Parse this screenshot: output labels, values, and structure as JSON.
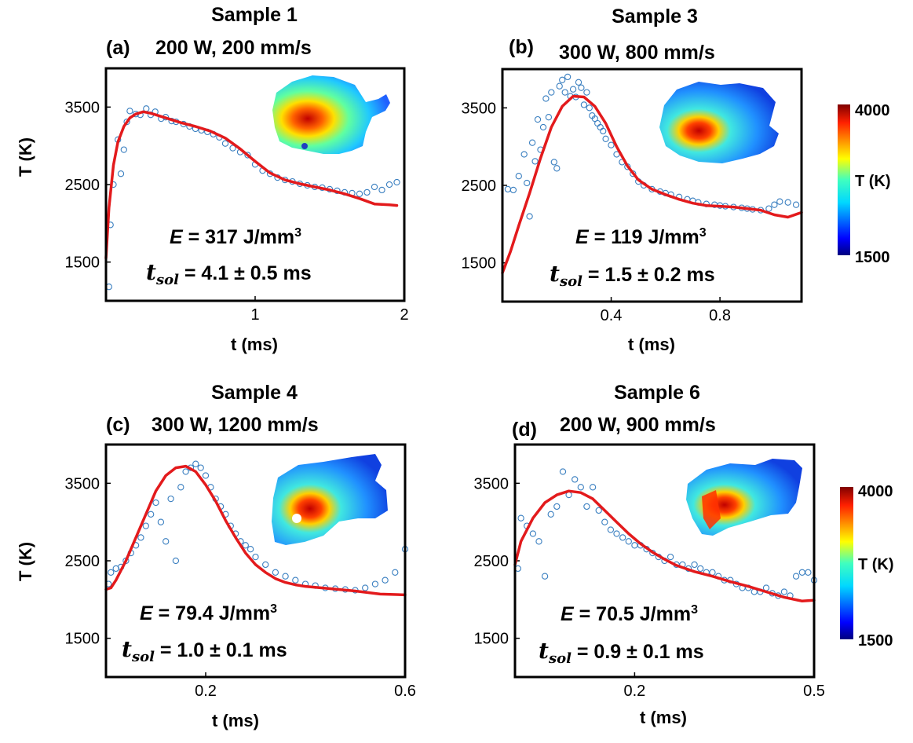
{
  "colors": {
    "fit_line": "#e31a1c",
    "points": "#3a7fc0",
    "colormap": [
      "#00007f",
      "#0000ff",
      "#0080ff",
      "#00d8ff",
      "#40ffbf",
      "#80ff40",
      "#ffff00",
      "#ff8000",
      "#ff0000",
      "#7f0000"
    ]
  },
  "colorbars": [
    {
      "label": "T (K)",
      "max_label": "4000",
      "min_label": "1500"
    },
    {
      "label": "T (K)",
      "max_label": "4000",
      "min_label": "1500"
    }
  ],
  "chart_data": [
    {
      "type": "scatter",
      "panel": "(a)",
      "title": "Sample 1",
      "subtitle": "200 W, 200 mm/s",
      "xlabel": "t (ms)",
      "ylabel": "T (K)",
      "xlim": [
        0,
        2
      ],
      "ylim": [
        1000,
        4000
      ],
      "xticks": [
        1,
        2
      ],
      "yticks": [
        1500,
        2500,
        3500
      ],
      "annotation_energy": "E = 317 J/mm³",
      "annotation_tsol": "tsol = 4.1 ± 0.5 ms",
      "series": [
        {
          "kind": "points",
          "x": [
            0.02,
            0.03,
            0.05,
            0.08,
            0.1,
            0.12,
            0.14,
            0.16,
            0.2,
            0.23,
            0.27,
            0.3,
            0.33,
            0.37,
            0.4,
            0.44,
            0.47,
            0.52,
            0.56,
            0.6,
            0.64,
            0.68,
            0.72,
            0.76,
            0.8,
            0.85,
            0.9,
            0.95,
            1.0,
            1.05,
            1.1,
            1.15,
            1.2,
            1.25,
            1.3,
            1.35,
            1.4,
            1.45,
            1.5,
            1.55,
            1.6,
            1.65,
            1.7,
            1.75,
            1.8,
            1.85,
            1.9,
            1.95
          ],
          "y": [
            1180,
            1980,
            2500,
            3080,
            2640,
            2950,
            3310,
            3450,
            3410,
            3400,
            3480,
            3400,
            3440,
            3350,
            3370,
            3320,
            3310,
            3280,
            3250,
            3220,
            3200,
            3180,
            3150,
            3110,
            3030,
            2970,
            2920,
            2880,
            2760,
            2680,
            2640,
            2590,
            2560,
            2540,
            2510,
            2490,
            2470,
            2460,
            2440,
            2420,
            2400,
            2390,
            2380,
            2400,
            2470,
            2430,
            2500,
            2530
          ]
        },
        {
          "kind": "fit",
          "x": [
            0,
            0.02,
            0.05,
            0.08,
            0.12,
            0.16,
            0.2,
            0.25,
            0.3,
            0.4,
            0.5,
            0.6,
            0.7,
            0.8,
            0.9,
            1.0,
            1.1,
            1.2,
            1.3,
            1.4,
            1.5,
            1.6,
            1.7,
            1.8,
            1.9,
            1.95
          ],
          "y": [
            1550,
            2200,
            2750,
            3050,
            3250,
            3360,
            3410,
            3440,
            3420,
            3360,
            3300,
            3250,
            3190,
            3100,
            2960,
            2800,
            2650,
            2560,
            2510,
            2470,
            2430,
            2380,
            2320,
            2250,
            2240,
            2230
          ]
        }
      ]
    },
    {
      "type": "scatter",
      "panel": "(b)",
      "title": "Sample 3",
      "subtitle": "300 W, 800 mm/s",
      "xlabel": "t (ms)",
      "ylabel": "",
      "xlim": [
        0,
        1.1
      ],
      "ylim": [
        1000,
        4000
      ],
      "xticks": [
        0.4,
        0.8
      ],
      "yticks": [
        1500,
        2500,
        3500
      ],
      "annotation_energy": "E = 119 J/mm³",
      "annotation_tsol": "tsol = 1.5 ± 0.2 ms",
      "series": [
        {
          "kind": "points",
          "x": [
            0.02,
            0.04,
            0.06,
            0.08,
            0.09,
            0.1,
            0.11,
            0.12,
            0.13,
            0.14,
            0.15,
            0.16,
            0.17,
            0.18,
            0.19,
            0.2,
            0.21,
            0.22,
            0.23,
            0.24,
            0.25,
            0.26,
            0.27,
            0.28,
            0.29,
            0.3,
            0.31,
            0.32,
            0.33,
            0.34,
            0.35,
            0.36,
            0.37,
            0.38,
            0.4,
            0.42,
            0.44,
            0.46,
            0.48,
            0.5,
            0.52,
            0.55,
            0.58,
            0.6,
            0.62,
            0.65,
            0.68,
            0.7,
            0.72,
            0.75,
            0.78,
            0.8,
            0.82,
            0.85,
            0.88,
            0.9,
            0.92,
            0.95,
            0.98,
            1.0,
            1.02,
            1.05,
            1.08
          ],
          "y": [
            2450,
            2440,
            2620,
            2900,
            2530,
            2100,
            3050,
            2810,
            3350,
            2960,
            3250,
            3620,
            3380,
            3700,
            2800,
            2720,
            3780,
            3860,
            3700,
            3900,
            3650,
            3740,
            3640,
            3830,
            3760,
            3540,
            3700,
            3500,
            3400,
            3360,
            3300,
            3250,
            3200,
            3100,
            3020,
            2900,
            2800,
            2740,
            2650,
            2550,
            2500,
            2450,
            2420,
            2400,
            2380,
            2350,
            2320,
            2300,
            2280,
            2260,
            2250,
            2240,
            2230,
            2220,
            2210,
            2200,
            2190,
            2180,
            2200,
            2250,
            2290,
            2280,
            2250
          ]
        },
        {
          "kind": "fit",
          "x": [
            0,
            0.03,
            0.06,
            0.1,
            0.14,
            0.18,
            0.22,
            0.26,
            0.3,
            0.34,
            0.38,
            0.42,
            0.46,
            0.5,
            0.55,
            0.6,
            0.65,
            0.7,
            0.75,
            0.8,
            0.85,
            0.9,
            0.95,
            1.0,
            1.05,
            1.1
          ],
          "y": [
            1370,
            1650,
            1980,
            2400,
            2850,
            3250,
            3520,
            3650,
            3640,
            3520,
            3300,
            3000,
            2750,
            2570,
            2450,
            2380,
            2320,
            2270,
            2240,
            2230,
            2220,
            2200,
            2180,
            2120,
            2090,
            2150
          ]
        }
      ]
    },
    {
      "type": "scatter",
      "panel": "(c)",
      "title": "Sample 4",
      "subtitle": "300 W, 1200 mm/s",
      "xlabel": "t (ms)",
      "ylabel": "T (K)",
      "xlim": [
        0,
        0.6
      ],
      "ylim": [
        1000,
        4000
      ],
      "xticks": [
        0.2,
        0.6
      ],
      "yticks": [
        1500,
        2500,
        3500
      ],
      "annotation_energy": "E = 79.4 J/mm³",
      "annotation_tsol": "tsol = 1.0 ± 0.1 ms",
      "series": [
        {
          "kind": "points",
          "x": [
            0.005,
            0.01,
            0.02,
            0.03,
            0.04,
            0.05,
            0.06,
            0.07,
            0.08,
            0.09,
            0.1,
            0.11,
            0.12,
            0.13,
            0.14,
            0.15,
            0.16,
            0.17,
            0.18,
            0.19,
            0.2,
            0.21,
            0.22,
            0.23,
            0.24,
            0.25,
            0.26,
            0.27,
            0.28,
            0.29,
            0.3,
            0.32,
            0.34,
            0.36,
            0.38,
            0.4,
            0.42,
            0.44,
            0.46,
            0.48,
            0.5,
            0.52,
            0.54,
            0.56,
            0.58,
            0.6
          ],
          "y": [
            2200,
            2350,
            2400,
            2420,
            2500,
            2600,
            2700,
            2800,
            2950,
            3100,
            3250,
            3000,
            2750,
            3300,
            2500,
            3450,
            3650,
            3700,
            3750,
            3700,
            3600,
            3450,
            3300,
            3200,
            3100,
            2950,
            2850,
            2750,
            2700,
            2650,
            2550,
            2450,
            2350,
            2300,
            2250,
            2200,
            2180,
            2150,
            2140,
            2130,
            2120,
            2150,
            2200,
            2250,
            2350,
            2650
          ]
        },
        {
          "kind": "fit",
          "x": [
            0,
            0.01,
            0.02,
            0.04,
            0.06,
            0.08,
            0.1,
            0.12,
            0.14,
            0.16,
            0.18,
            0.2,
            0.22,
            0.24,
            0.26,
            0.28,
            0.3,
            0.32,
            0.34,
            0.36,
            0.38,
            0.4,
            0.45,
            0.5,
            0.55,
            0.6
          ],
          "y": [
            2130,
            2150,
            2250,
            2500,
            2800,
            3100,
            3400,
            3600,
            3700,
            3720,
            3650,
            3480,
            3270,
            3020,
            2800,
            2600,
            2450,
            2350,
            2270,
            2220,
            2190,
            2170,
            2140,
            2110,
            2070,
            2060
          ]
        }
      ]
    },
    {
      "type": "scatter",
      "panel": "(d)",
      "title": "Sample 6",
      "subtitle": "200 W, 900 mm/s",
      "xlabel": "t (ms)",
      "ylabel": "",
      "xlim": [
        0,
        0.5
      ],
      "ylim": [
        1000,
        4000
      ],
      "xticks": [
        0.2,
        0.5
      ],
      "yticks": [
        1500,
        2500,
        3500
      ],
      "annotation_energy": "E = 70.5 J/mm³",
      "annotation_tsol": "tsol = 0.9 ± 0.1 ms",
      "series": [
        {
          "kind": "points",
          "x": [
            0.005,
            0.01,
            0.02,
            0.03,
            0.04,
            0.05,
            0.06,
            0.07,
            0.08,
            0.09,
            0.1,
            0.11,
            0.12,
            0.13,
            0.14,
            0.15,
            0.16,
            0.17,
            0.18,
            0.19,
            0.2,
            0.21,
            0.22,
            0.23,
            0.24,
            0.25,
            0.26,
            0.27,
            0.28,
            0.29,
            0.3,
            0.31,
            0.32,
            0.33,
            0.34,
            0.35,
            0.36,
            0.37,
            0.38,
            0.39,
            0.4,
            0.41,
            0.42,
            0.43,
            0.44,
            0.45,
            0.46,
            0.47,
            0.48,
            0.49,
            0.5
          ],
          "y": [
            2400,
            3050,
            2950,
            2850,
            2750,
            2300,
            3100,
            3200,
            3650,
            3350,
            3550,
            3450,
            3200,
            3450,
            3150,
            3000,
            2900,
            2850,
            2800,
            2750,
            2700,
            2700,
            2650,
            2600,
            2550,
            2500,
            2550,
            2450,
            2450,
            2400,
            2450,
            2400,
            2350,
            2350,
            2300,
            2250,
            2250,
            2200,
            2150,
            2150,
            2100,
            2100,
            2150,
            2080,
            2050,
            2100,
            2050,
            2300,
            2350,
            2350,
            2250
          ]
        },
        {
          "kind": "fit",
          "x": [
            0,
            0.01,
            0.03,
            0.05,
            0.07,
            0.09,
            0.11,
            0.13,
            0.15,
            0.17,
            0.19,
            0.21,
            0.23,
            0.25,
            0.27,
            0.3,
            0.33,
            0.36,
            0.39,
            0.42,
            0.45,
            0.48,
            0.5
          ],
          "y": [
            2450,
            2750,
            3050,
            3250,
            3350,
            3400,
            3380,
            3300,
            3150,
            3000,
            2850,
            2720,
            2610,
            2520,
            2440,
            2360,
            2300,
            2230,
            2170,
            2100,
            2030,
            1980,
            1990
          ]
        }
      ]
    }
  ]
}
